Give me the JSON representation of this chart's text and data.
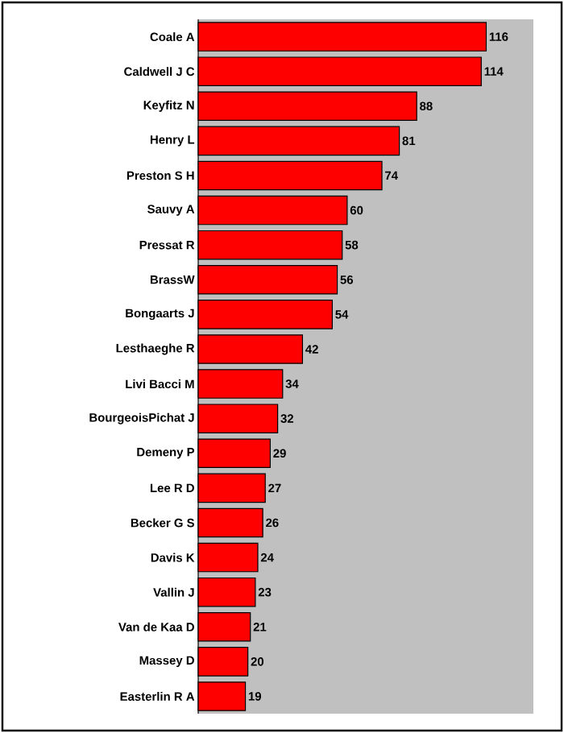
{
  "chart_data": {
    "type": "bar",
    "orientation": "horizontal",
    "categories": [
      "Coale A",
      "Caldwell J C",
      "Keyfitz N",
      "Henry L",
      "Preston S H",
      "Sauvy A",
      "Pressat R",
      "BrassW",
      "Bongaarts J",
      "Lesthaeghe R",
      "Livi Bacci M",
      "BourgeoisPichat J",
      "Demeny P",
      "Lee R D",
      "Becker G S",
      "Davis K",
      "Vallin J",
      "Van de Kaa D",
      "Massey D",
      "Easterlin R A"
    ],
    "values": [
      116,
      114,
      88,
      81,
      74,
      60,
      58,
      56,
      54,
      42,
      34,
      32,
      29,
      27,
      26,
      24,
      23,
      21,
      20,
      19
    ],
    "color": "#ff0000",
    "xlim": [
      0,
      135
    ],
    "data_labels": true
  }
}
